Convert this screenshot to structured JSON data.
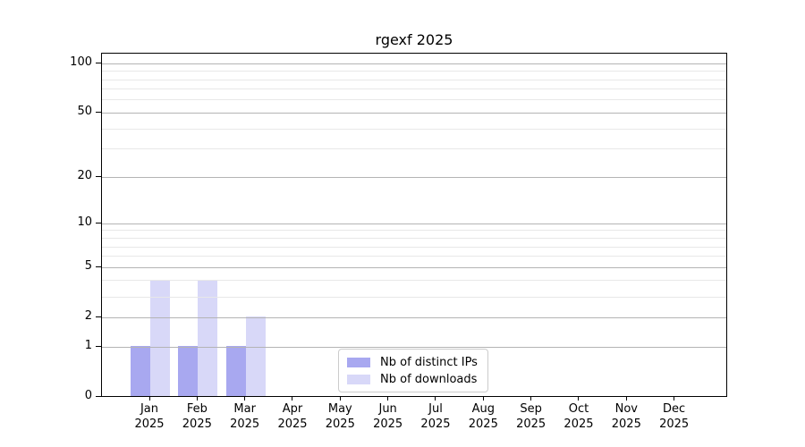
{
  "title": "rgexf 2025",
  "colors": {
    "distinct_ips": "#a8a8f0",
    "downloads": "#d8d8f8",
    "grid_major": "#b4b4b4",
    "grid_minor": "#e8e8e8",
    "axis": "#000000",
    "legend_border": "#cccccc",
    "background": "#ffffff"
  },
  "legend": {
    "items": [
      {
        "label": "Nb of distinct IPs",
        "color": "#a8a8f0"
      },
      {
        "label": "Nb of downloads",
        "color": "#d8d8f8"
      }
    ]
  },
  "chart_data": {
    "type": "bar",
    "title": "rgexf 2025",
    "categories": [
      "Jan 2025",
      "Feb 2025",
      "Mar 2025",
      "Apr 2025",
      "May 2025",
      "Jun 2025",
      "Jul 2025",
      "Aug 2025",
      "Sep 2025",
      "Oct 2025",
      "Nov 2025",
      "Dec 2025"
    ],
    "x_tick_month": [
      "Jan",
      "Feb",
      "Mar",
      "Apr",
      "May",
      "Jun",
      "Jul",
      "Aug",
      "Sep",
      "Oct",
      "Nov",
      "Dec"
    ],
    "x_tick_year": "2025",
    "series": [
      {
        "name": "Nb of distinct IPs",
        "color": "#a8a8f0",
        "values": [
          1,
          1,
          1,
          0,
          0,
          0,
          0,
          0,
          0,
          0,
          0,
          0
        ]
      },
      {
        "name": "Nb of downloads",
        "color": "#d8d8f8",
        "values": [
          4,
          4,
          2,
          0,
          0,
          0,
          0,
          0,
          0,
          0,
          0,
          0
        ]
      }
    ],
    "xlabel": "",
    "ylabel": "",
    "y_scale": "log1p",
    "y_ticks_major": [
      0,
      1,
      2,
      5,
      10,
      20,
      50,
      100
    ],
    "y_gridlines_minor": [
      3,
      4,
      6,
      7,
      8,
      9,
      30,
      40,
      60,
      70,
      80,
      90
    ],
    "ylim": [
      0,
      115
    ],
    "grid": true,
    "legend_position": "inside-bottom-center"
  }
}
